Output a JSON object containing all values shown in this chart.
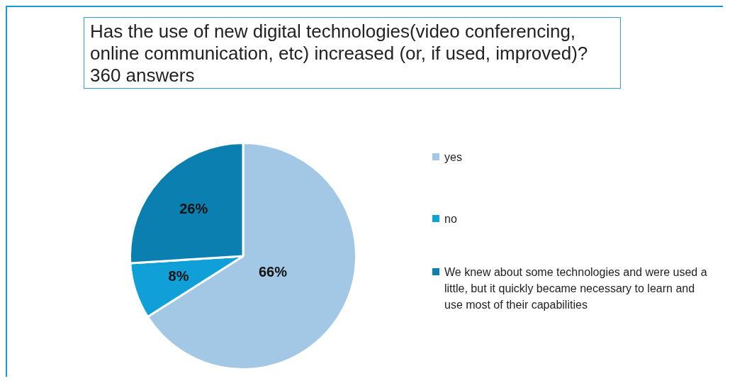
{
  "chart_data": {
    "type": "pie",
    "title": "Has the use of new digital technologies(video conferencing, online communication, etc) increased (or, if used, improved)?",
    "subtitle": "360 answers",
    "categories": [
      "yes",
      "no",
      "We knew about some technologies and were used a little, but it quickly became necessary to learn and use most of their capabilities"
    ],
    "values": [
      66,
      8,
      26
    ],
    "colors": [
      "#a2c8e6",
      "#10a0d8",
      "#0b80b0"
    ],
    "value_labels": [
      "66%",
      "8%",
      "26%"
    ],
    "legend": "right"
  }
}
